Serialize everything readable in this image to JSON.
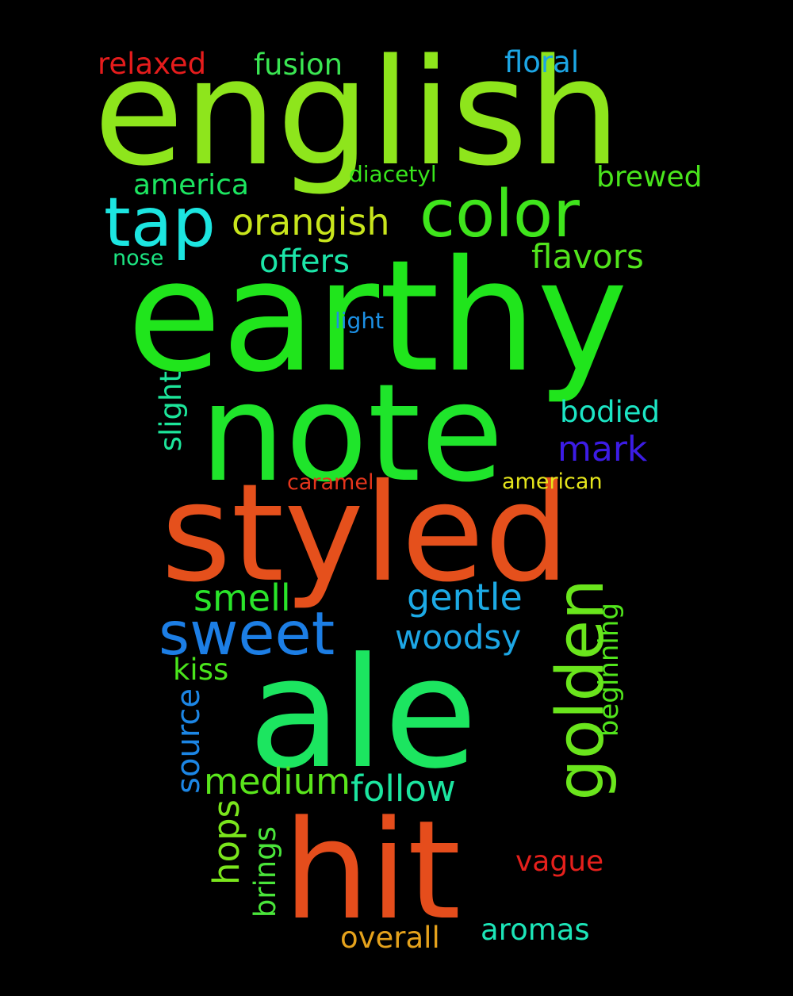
{
  "words": [
    {
      "text": "english",
      "color": "#8ee51c"
    },
    {
      "text": "earthy",
      "color": "#20e51c"
    },
    {
      "text": "note",
      "color": "#1fe52b"
    },
    {
      "text": "styled",
      "color": "#e5501c"
    },
    {
      "text": "ale",
      "color": "#1ce560"
    },
    {
      "text": "hit",
      "color": "#e54d1c"
    },
    {
      "text": "color",
      "color": "#3fe51c"
    },
    {
      "text": "tap",
      "color": "#1ce5e0"
    },
    {
      "text": "sweet",
      "color": "#1c7ee5"
    },
    {
      "text": "golden",
      "color": "#6ae51c"
    },
    {
      "text": "orangish",
      "color": "#c8e51c"
    },
    {
      "text": "offers",
      "color": "#1ce5a8"
    },
    {
      "text": "flavors",
      "color": "#52e51c"
    },
    {
      "text": "relaxed",
      "color": "#e51c1c"
    },
    {
      "text": "fusion",
      "color": "#3ae552"
    },
    {
      "text": "floral",
      "color": "#1ca6e5"
    },
    {
      "text": "america",
      "color": "#1ce560"
    },
    {
      "text": "diacetyl",
      "color": "#38e51c"
    },
    {
      "text": "brewed",
      "color": "#4ae51c"
    },
    {
      "text": "nose",
      "color": "#1ce582"
    },
    {
      "text": "light",
      "color": "#1c90e5"
    },
    {
      "text": "bodied",
      "color": "#1ce5c4"
    },
    {
      "text": "mark",
      "color": "#3c1ce5"
    },
    {
      "text": "slight",
      "color": "#1ce59a"
    },
    {
      "text": "caramel",
      "color": "#e5351c"
    },
    {
      "text": "american",
      "color": "#e5e51c"
    },
    {
      "text": "smell",
      "color": "#2ae52a"
    },
    {
      "text": "gentle",
      "color": "#1caae5"
    },
    {
      "text": "woodsy",
      "color": "#1ca6e5"
    },
    {
      "text": "beginning",
      "color": "#52e51c"
    },
    {
      "text": "kiss",
      "color": "#4ae51c"
    },
    {
      "text": "source",
      "color": "#1c86e5"
    },
    {
      "text": "medium",
      "color": "#5ae51c"
    },
    {
      "text": "follow",
      "color": "#1ce5a0"
    },
    {
      "text": "hops",
      "color": "#7ae51c"
    },
    {
      "text": "brings",
      "color": "#4ae53a"
    },
    {
      "text": "vague",
      "color": "#e5201c"
    },
    {
      "text": "overall",
      "color": "#e5a21c"
    },
    {
      "text": "aromas",
      "color": "#1ce5b8"
    }
  ]
}
